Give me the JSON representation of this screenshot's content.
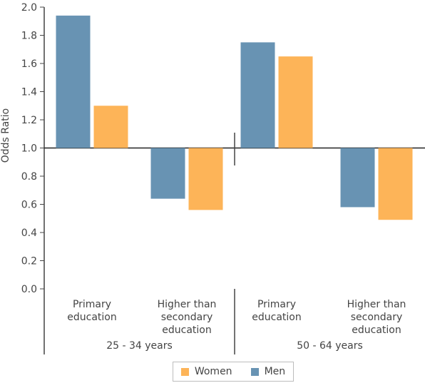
{
  "chart_data": {
    "type": "bar",
    "ylabel": "Odds Ratio",
    "ylim": [
      0,
      2.0
    ],
    "yticks": [
      "0.0",
      "0.2",
      "0.4",
      "0.6",
      "0.8",
      "1.0",
      "1.2",
      "1.4",
      "1.6",
      "1.8",
      "2.0"
    ],
    "baseline": 1.0,
    "grid": false,
    "legend_position": "bottom",
    "groups": [
      {
        "label": "25 - 34 years",
        "categories": [
          "Primary\neducation",
          "Higher than\nsecondary\neducation"
        ]
      },
      {
        "label": "50 - 64 years",
        "categories": [
          "Primary\neducation",
          "Higher than\nsecondary\neducation"
        ]
      }
    ],
    "categories": [
      "Primary education",
      "Higher than secondary education",
      "Primary education",
      "Higher than secondary education"
    ],
    "series": [
      {
        "name": "Men",
        "color": "#6893b3",
        "values": [
          1.94,
          0.64,
          1.75,
          0.58
        ]
      },
      {
        "name": "Women",
        "color": "#fdb458",
        "values": [
          1.3,
          0.56,
          1.65,
          0.49
        ]
      }
    ]
  },
  "legend": {
    "items": [
      {
        "label": "Women",
        "color": "#fdb458"
      },
      {
        "label": "Men",
        "color": "#6893b3"
      }
    ]
  }
}
